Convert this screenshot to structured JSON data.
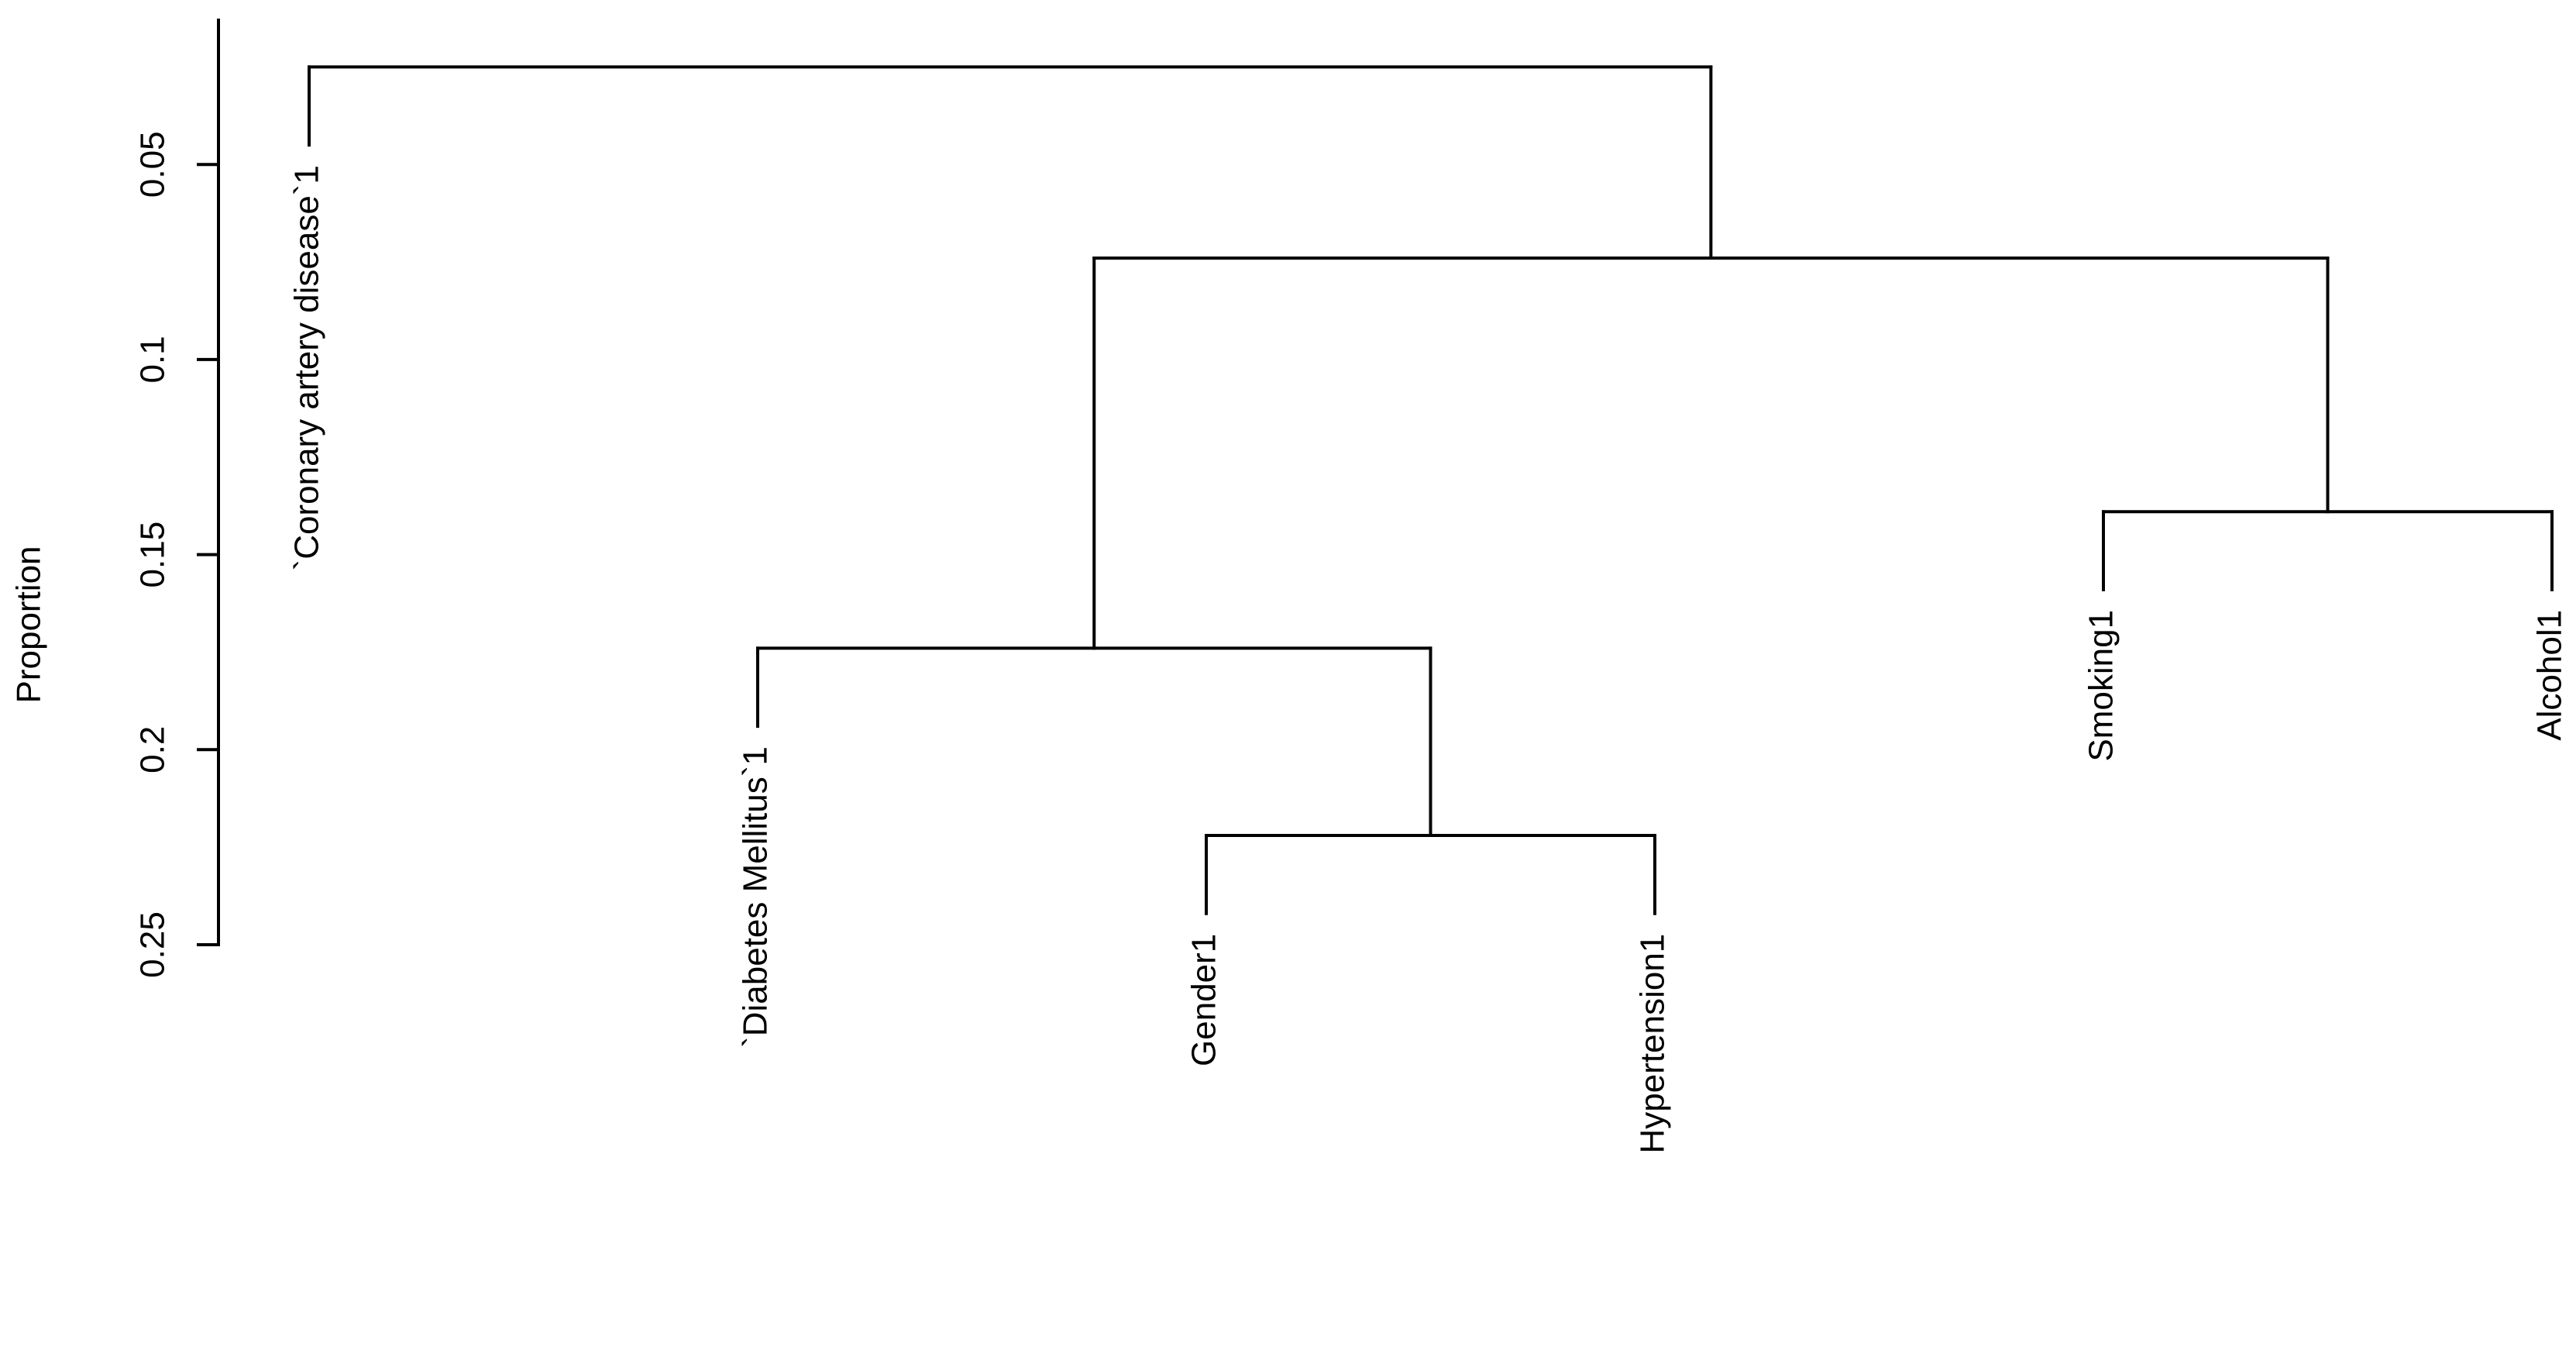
{
  "chart_data": {
    "type": "dendrogram",
    "y_label": "Proportion",
    "ylim": [
      0.013,
      0.25
    ],
    "yticks": [
      0.05,
      0.1,
      0.15,
      0.2,
      0.25
    ],
    "y_reversed": true,
    "leaf_hang": 0.02,
    "color": "#000000",
    "tree": {
      "height": 0.025,
      "children": [
        {
          "label": "`Coronary artery disease`1"
        },
        {
          "height": 0.074,
          "children": [
            {
              "height": 0.174,
              "children": [
                {
                  "label": "`Diabetes Mellitus`1"
                },
                {
                  "height": 0.222,
                  "children": [
                    {
                      "label": "Gender1"
                    },
                    {
                      "label": "Hypertension1"
                    }
                  ]
                }
              ]
            },
            {
              "height": 0.139,
              "children": [
                {
                  "label": "Smoking1"
                },
                {
                  "label": "Alcohol1"
                }
              ]
            }
          ]
        }
      ]
    }
  }
}
